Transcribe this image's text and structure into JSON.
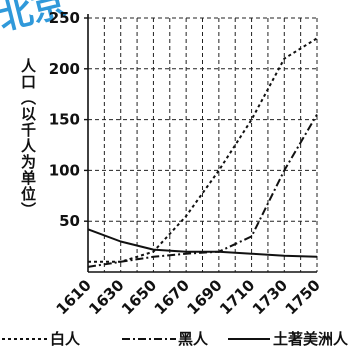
{
  "chart_data": {
    "type": "line",
    "ylabel": "人口（以千人为单位）",
    "x": [
      1610,
      1630,
      1650,
      1670,
      1690,
      1710,
      1730,
      1750
    ],
    "y_ticks": [
      50,
      100,
      150,
      200,
      250
    ],
    "ylim": [
      0,
      250
    ],
    "xlim": [
      1610,
      1750
    ],
    "grid": true,
    "legend_position": "bottom",
    "series": [
      {
        "name": "白人",
        "style": "dotted",
        "values": [
          10,
          10,
          20,
          55,
          100,
          150,
          210,
          230
        ]
      },
      {
        "name": "黑人",
        "style": "dashdot",
        "values": [
          5,
          10,
          15,
          18,
          20,
          35,
          100,
          155
        ]
      },
      {
        "name": "土著美洲人",
        "style": "solid",
        "values": [
          42,
          30,
          22,
          20,
          20,
          18,
          16,
          15
        ]
      }
    ]
  },
  "watermark": {
    "text": "北京",
    "color": "#1a8fd6"
  }
}
